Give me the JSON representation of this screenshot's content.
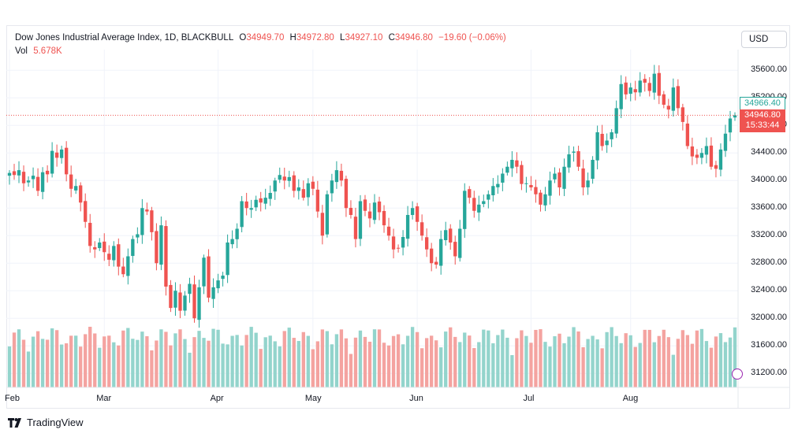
{
  "header": {
    "instrument": "Dow Jones Industrial Average Index, 1D, BLACKBULL",
    "open_label": "O",
    "open": "34949.70",
    "high_label": "H",
    "high": "34972.80",
    "low_label": "L",
    "low": "34927.10",
    "close_label": "C",
    "close": "34946.80",
    "change": "−19.60 (−0.06%)",
    "vol_label": "Vol",
    "vol": "5.678K"
  },
  "currency_button": "USD",
  "price_tags": {
    "reference": "34966.40",
    "last_price": "34946.80",
    "countdown": "15:33:44"
  },
  "footer": {
    "brand": "TradingView"
  },
  "colors": {
    "up": "#26a69a",
    "down": "#ef5350",
    "vol_up": "#93d4cc",
    "vol_down": "#f4a3a0",
    "grid": "#f0f3fa"
  },
  "chart_data": {
    "type": "candlestick",
    "y_axis": {
      "ticks": [
        "31200.00",
        "31600.00",
        "32000.00",
        "32400.00",
        "32800.00",
        "33200.00",
        "33600.00",
        "34000.00",
        "34400.00",
        "34800.00",
        "35200.00",
        "35600.00"
      ],
      "ylim": [
        31020,
        35820
      ]
    },
    "x_axis": {
      "labels": [
        "Feb",
        "Mar",
        "Apr",
        "May",
        "Jun",
        "Jul",
        "Aug"
      ],
      "label_index": [
        0,
        20,
        44,
        64,
        86,
        110,
        131
      ]
    },
    "last_price": 34946.8,
    "reference_price": 34966.4,
    "close": [
      34110,
      34080,
      34150,
      33960,
      34000,
      34070,
      33850,
      34120,
      34090,
      34430,
      34330,
      34450,
      34090,
      33880,
      33920,
      33680,
      33400,
      33050,
      33000,
      33100,
      32960,
      32850,
      33050,
      32750,
      32640,
      32900,
      33150,
      33220,
      33600,
      33550,
      33250,
      32800,
      33350,
      32460,
      32150,
      32400,
      32110,
      32330,
      32500,
      32000,
      32450,
      32880,
      32300,
      32450,
      32550,
      32620,
      33100,
      33150,
      33300,
      33700,
      33600,
      33600,
      33720,
      33680,
      33750,
      33820,
      34000,
      34080,
      34000,
      34050,
      33850,
      33900,
      33750,
      33960,
      33880,
      33550,
      33200,
      33800,
      34000,
      34150,
      34000,
      33600,
      33500,
      33150,
      33700,
      33560,
      33450,
      33680,
      33540,
      33350,
      33200,
      33000,
      33020,
      33180,
      33500,
      33600,
      33400,
      33200,
      33000,
      32800,
      32780,
      33150,
      33280,
      33100,
      32900,
      33300,
      33850,
      33750,
      33560,
      33650,
      33700,
      33800,
      33920,
      33950,
      34100,
      34200,
      34300,
      34200,
      33950,
      33960,
      33900,
      33800,
      33650,
      33800,
      34000,
      34100,
      33900,
      34200,
      34380,
      34420,
      34200,
      33900,
      34000,
      34300,
      34700,
      34500,
      34580,
      34700,
      35050,
      35400,
      35250,
      35350,
      35280,
      35450,
      35420,
      35300,
      35550,
      35230,
      35100,
      35030,
      35350,
      35050,
      34850,
      34500,
      34350,
      34330,
      34400,
      34500,
      34200,
      34170,
      34450,
      34680,
      34900,
      34946.8
    ],
    "series": [
      {
        "name": "Vol",
        "kind": "volume"
      }
    ]
  }
}
